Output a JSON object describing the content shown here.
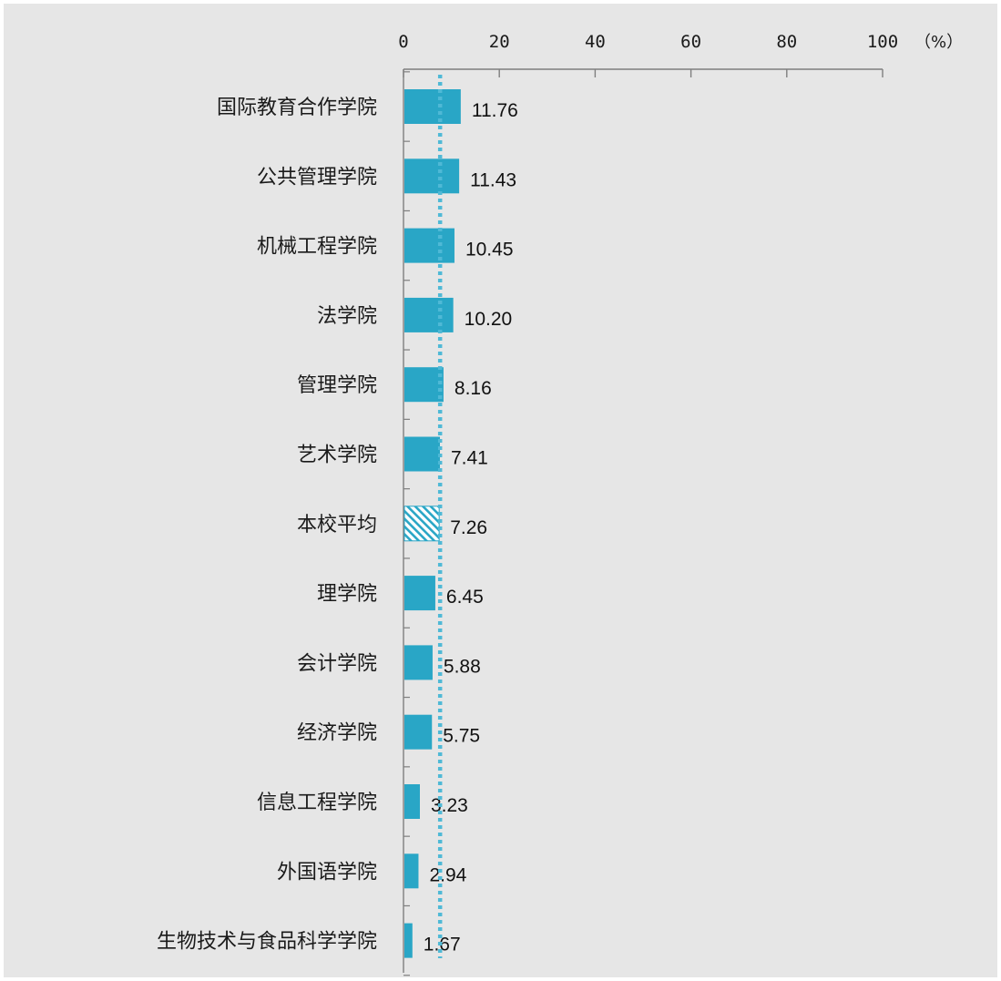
{
  "chart_data": {
    "type": "bar",
    "orientation": "horizontal",
    "title": "",
    "xlabel": "",
    "ylabel": "",
    "unit": "（%）",
    "xlim": [
      0,
      100
    ],
    "x_ticks": [
      0,
      20,
      40,
      60,
      80,
      100
    ],
    "x_axis_position": "top",
    "grid": false,
    "categories": [
      "国际教育合作学院",
      "公共管理学院",
      "机械工程学院",
      "法学院",
      "管理学院",
      "艺术学院",
      "本校平均",
      "理学院",
      "会计学院",
      "经济学院",
      "信息工程学院",
      "外国语学院",
      "生物技术与食品科学学院"
    ],
    "values": [
      11.76,
      11.43,
      10.45,
      10.2,
      8.16,
      7.41,
      7.26,
      6.45,
      5.88,
      5.75,
      3.23,
      2.94,
      1.67
    ],
    "value_labels": [
      "11.76",
      "11.43",
      "10.45",
      "10.20",
      "8.16",
      "7.41",
      "7.26",
      "6.45",
      "5.88",
      "5.75",
      "3.23",
      "2.94",
      "1.67"
    ],
    "highlighted_category": "本校平均",
    "highlight_style": "hatched",
    "reference_line": {
      "value": 7.26,
      "style": "dotted"
    },
    "colors": {
      "background": "#e6e6e6",
      "bar": "#29a6c6",
      "reference_line": "#4fb9d6",
      "axis": "#7f7f7f"
    }
  }
}
